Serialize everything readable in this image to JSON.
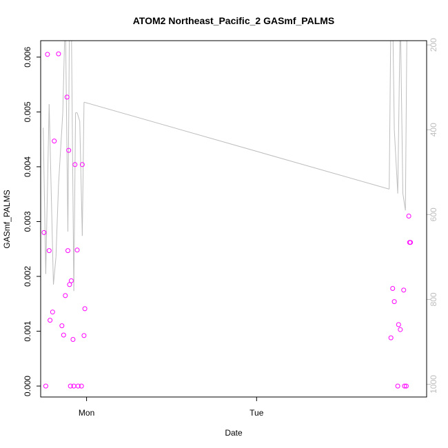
{
  "chart_data": {
    "type": "scatter",
    "title": "ATOM2 Northeast_Pacific_2 GASmf_PALMS",
    "xlabel": "Date",
    "ylabel": "GASmf_PALMS",
    "x_ticks": [
      "Mon",
      "Tue"
    ],
    "y_ticks": [
      "0.000",
      "0.001",
      "0.002",
      "0.003",
      "0.004",
      "0.005",
      "0.006"
    ],
    "y_right_ticks": [
      "200",
      "400",
      "600",
      "800",
      "1000"
    ],
    "x_unit": "days after the \"Mon\" tick",
    "xlim": [
      -0.27,
      2.0
    ],
    "ylim": [
      -0.0002,
      0.0063
    ],
    "y_right_lim": [
      1030,
      190
    ],
    "y_right_reversed": true,
    "grid": false,
    "series": [
      {
        "role": "points",
        "color": "#ff00ff",
        "marker": "open-circle",
        "points": [
          {
            "x": -0.25,
            "y": 0.0028
          },
          {
            "x": -0.24,
            "y": 0.0
          },
          {
            "x": -0.23,
            "y": 0.00605
          },
          {
            "x": -0.22,
            "y": 0.00247
          },
          {
            "x": -0.215,
            "y": 0.0012
          },
          {
            "x": -0.2,
            "y": 0.00135
          },
          {
            "x": -0.19,
            "y": 0.00447
          },
          {
            "x": -0.165,
            "y": 0.00606
          },
          {
            "x": -0.145,
            "y": 0.0011
          },
          {
            "x": -0.135,
            "y": 0.00093
          },
          {
            "x": -0.125,
            "y": 0.00165
          },
          {
            "x": -0.115,
            "y": 0.00527
          },
          {
            "x": -0.11,
            "y": 0.00247
          },
          {
            "x": -0.105,
            "y": 0.0043
          },
          {
            "x": -0.1,
            "y": 0.00185
          },
          {
            "x": -0.095,
            "y": 0.0
          },
          {
            "x": -0.09,
            "y": 0.00192
          },
          {
            "x": -0.08,
            "y": 0.00085
          },
          {
            "x": -0.075,
            "y": 0.0
          },
          {
            "x": -0.068,
            "y": 0.00404
          },
          {
            "x": -0.055,
            "y": 0.00248
          },
          {
            "x": -0.05,
            "y": 0.0
          },
          {
            "x": -0.03,
            "y": 0.0
          },
          {
            "x": -0.025,
            "y": 0.00404
          },
          {
            "x": -0.015,
            "y": 0.00092
          },
          {
            "x": -0.01,
            "y": 0.00141
          },
          {
            "x": 1.79,
            "y": 0.00088
          },
          {
            "x": 1.8,
            "y": 0.00178
          },
          {
            "x": 1.81,
            "y": 0.00154
          },
          {
            "x": 1.83,
            "y": 0.0
          },
          {
            "x": 1.835,
            "y": 0.00112
          },
          {
            "x": 1.845,
            "y": 0.00103
          },
          {
            "x": 1.865,
            "y": 0.00175
          },
          {
            "x": 1.87,
            "y": 0.0
          },
          {
            "x": 1.88,
            "y": 0.0
          },
          {
            "x": 1.895,
            "y": 0.0031
          },
          {
            "x": 1.9,
            "y": 0.00262
          },
          {
            "x": 1.905,
            "y": 0.00262
          }
        ]
      },
      {
        "role": "line",
        "axis": "right",
        "color": "#bdbdbd",
        "points": [
          {
            "x": -0.255,
            "y": 395
          },
          {
            "x": -0.24,
            "y": 740
          },
          {
            "x": -0.22,
            "y": 340
          },
          {
            "x": -0.195,
            "y": 765
          },
          {
            "x": -0.18,
            "y": 700
          },
          {
            "x": -0.165,
            "y": 530
          },
          {
            "x": -0.14,
            "y": 360
          },
          {
            "x": -0.125,
            "y": 120
          },
          {
            "x": -0.11,
            "y": 640
          },
          {
            "x": -0.1,
            "y": 120
          },
          {
            "x": -0.09,
            "y": 120
          },
          {
            "x": -0.075,
            "y": 780
          },
          {
            "x": -0.065,
            "y": 360
          },
          {
            "x": -0.055,
            "y": 360
          },
          {
            "x": -0.04,
            "y": 380
          },
          {
            "x": -0.025,
            "y": 650
          },
          {
            "x": -0.015,
            "y": 335
          },
          {
            "x": 1.78,
            "y": 540
          },
          {
            "x": 1.79,
            "y": 120
          },
          {
            "x": 1.8,
            "y": 120
          },
          {
            "x": 1.81,
            "y": 400
          },
          {
            "x": 1.83,
            "y": 550
          },
          {
            "x": 1.845,
            "y": 120
          },
          {
            "x": 1.86,
            "y": 550
          },
          {
            "x": 1.875,
            "y": 590
          },
          {
            "x": 1.885,
            "y": 120
          },
          {
            "x": 1.9,
            "y": 120
          }
        ]
      }
    ]
  }
}
